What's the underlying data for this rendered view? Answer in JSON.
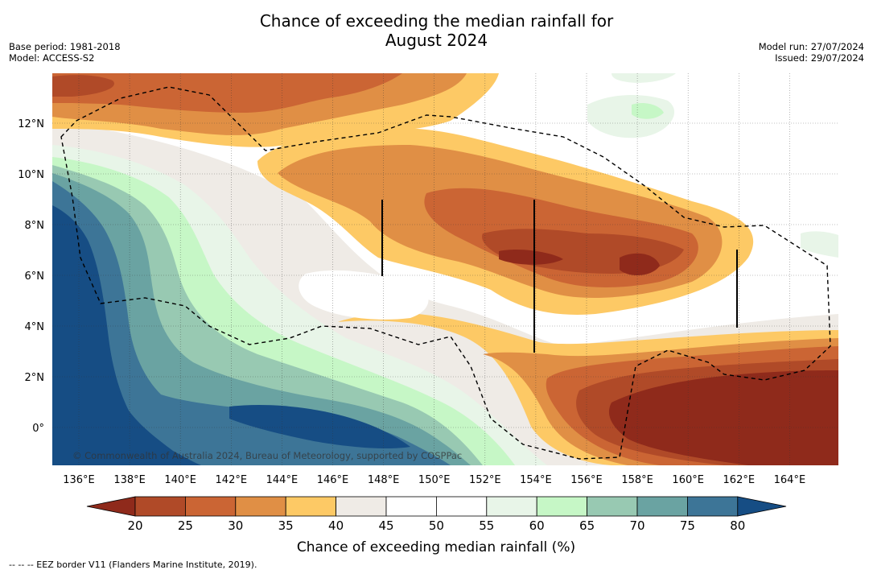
{
  "title_line1": "Chance of exceeding the median rainfall for",
  "title_line2": "August 2024",
  "base_period": "Base period: 1981-2018",
  "model": "Model: ACCESS-S2",
  "model_run": "Model run: 27/07/2024",
  "issued": "Issued: 29/07/2024",
  "copyright": "© Commonwealth of Australia 2024, Bureau of Meteorology, supported by COSPPac",
  "footer_note": "--  --  -- EEZ border V11 (Flanders Marine Institute, 2019).",
  "map": {
    "lon_labels": [
      "136°E",
      "138°E",
      "140°E",
      "142°E",
      "144°E",
      "146°E",
      "148°E",
      "150°E",
      "152°E",
      "154°E",
      "156°E",
      "158°E",
      "160°E",
      "162°E",
      "164°E"
    ],
    "lat_labels": [
      "12°N",
      "10°N",
      "8°N",
      "6°N",
      "4°N",
      "2°N",
      "0°"
    ]
  },
  "colorbar": {
    "label": "Chance of exceeding median rainfall (%)",
    "ticks": [
      "20",
      "25",
      "30",
      "35",
      "40",
      "45",
      "50",
      "55",
      "60",
      "65",
      "70",
      "75",
      "80"
    ],
    "colors": {
      "below": "#8f2a1b",
      "b20": "#b04a28",
      "b25": "#cb6534",
      "b30": "#e08f45",
      "b35": "#fdc965",
      "b40": "#efebe6",
      "b45": "#ffffff",
      "b50": "#ffffff",
      "b55": "#e8f5e8",
      "b60": "#c6f7c6",
      "b65": "#98c9b2",
      "b70": "#6aa3a2",
      "b75": "#3d7597",
      "above": "#164d84"
    }
  }
}
